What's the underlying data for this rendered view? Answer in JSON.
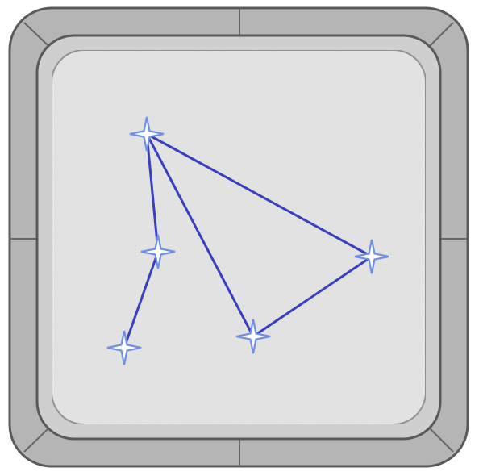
{
  "board": {
    "frame_color": "#b5b5b5",
    "frame_stroke": "#5a5a5a",
    "inner_frame_color": "#cfcfcf",
    "surface_color": "#e6e6e6"
  },
  "puzzle": {
    "line_color": "#3a3fbf",
    "star_fill": "#ffffff",
    "star_stroke": "#6f8fe6",
    "stars": [
      {
        "id": "star-top",
        "icon": "four-point-star-icon"
      },
      {
        "id": "star-middle-left",
        "icon": "four-point-star-icon"
      },
      {
        "id": "star-bottom-left",
        "icon": "four-point-star-icon"
      },
      {
        "id": "star-bottom-center",
        "icon": "four-point-star-icon"
      },
      {
        "id": "star-right",
        "icon": "four-point-star-icon"
      }
    ],
    "connections": [
      [
        "star-top",
        "star-middle-left"
      ],
      [
        "star-middle-left",
        "star-bottom-left"
      ],
      [
        "star-top",
        "star-bottom-center"
      ],
      [
        "star-bottom-center",
        "star-right"
      ],
      [
        "star-top",
        "star-right"
      ]
    ]
  }
}
